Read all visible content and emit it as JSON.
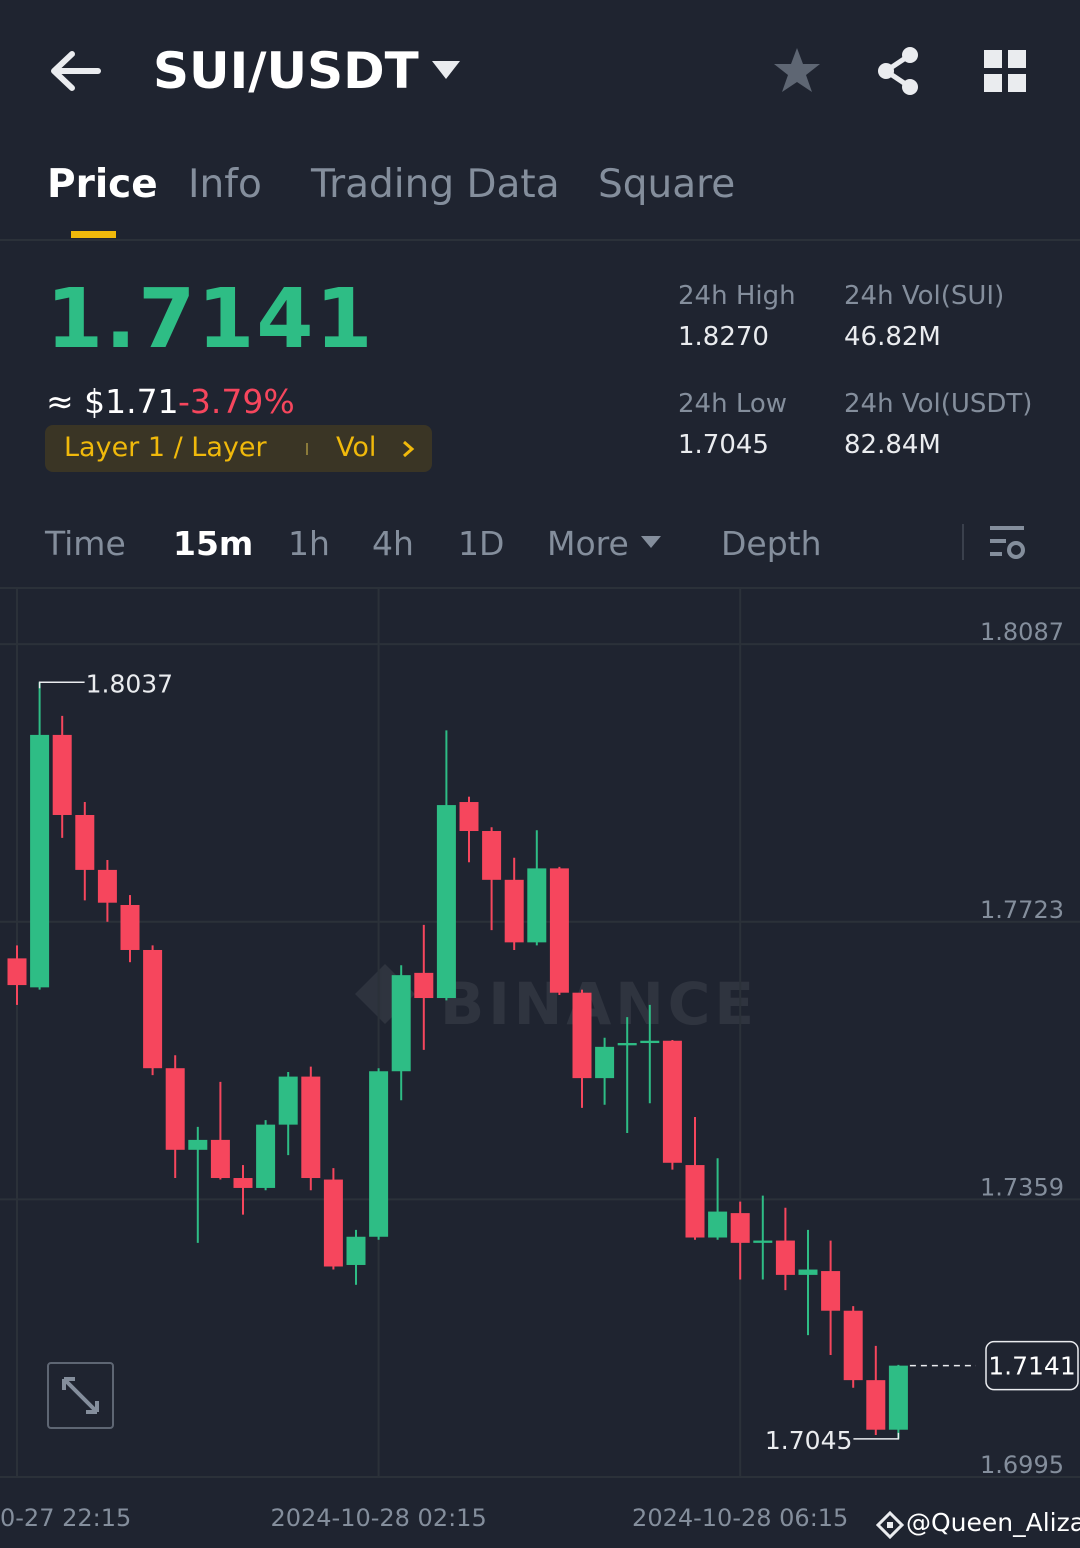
{
  "header": {
    "pair": "SUI/USDT"
  },
  "tabs": [
    "Price",
    "Info",
    "Trading Data",
    "Square"
  ],
  "ticker": {
    "price": "1.7141",
    "approx": "≈ $1.71",
    "change": "-3.79%",
    "tag": "Layer 1 / Layer",
    "tag_link": "Vol"
  },
  "stats": [
    {
      "label": "24h High",
      "value": "1.8270"
    },
    {
      "label": "24h Vol(SUI)",
      "value": "46.82M"
    },
    {
      "label": "24h Low",
      "value": "1.7045"
    },
    {
      "label": "24h Vol(USDT)",
      "value": "82.84M"
    }
  ],
  "intervals": [
    "Time",
    "15m",
    "1h",
    "4h",
    "1D",
    "More",
    "Depth"
  ],
  "chart_data": {
    "type": "candlestick",
    "watermark": "BINANCE",
    "categories": [
      "0-27 22:15",
      null,
      null,
      null,
      null,
      null,
      null,
      null,
      null,
      null,
      null,
      null,
      null,
      null,
      null,
      null,
      "2024-10-28 02:15",
      null,
      null,
      null,
      null,
      null,
      null,
      null,
      null,
      null,
      null,
      null,
      null,
      null,
      null,
      null,
      "2024-10-28 06:15",
      null,
      null,
      null,
      null,
      null,
      null,
      null
    ],
    "open": [
      1.7675,
      1.7637,
      1.7968,
      1.7863,
      1.7791,
      1.7745,
      1.7686,
      1.7531,
      1.7424,
      1.7437,
      1.7387,
      1.7374,
      1.7457,
      1.752,
      1.7385,
      1.7273,
      1.731,
      1.7527,
      1.7656,
      1.7623,
      1.788,
      1.7842,
      1.7778,
      1.7696,
      1.7793,
      1.763,
      1.7518,
      1.7561,
      1.7564,
      1.7567,
      1.7404,
      1.7309,
      1.7341,
      1.7302,
      1.7305,
      1.726,
      1.7265,
      1.7213,
      1.7122,
      1.7057
    ],
    "high": [
      1.7692,
      1.8037,
      1.7993,
      1.788,
      1.7804,
      1.7758,
      1.7692,
      1.7548,
      1.7454,
      1.7513,
      1.7404,
      1.7463,
      1.7526,
      1.7533,
      1.74,
      1.7319,
      1.7531,
      1.7666,
      1.7719,
      1.7974,
      1.7887,
      1.7847,
      1.7807,
      1.7843,
      1.7795,
      1.7634,
      1.7571,
      1.7598,
      1.7614,
      1.7568,
      1.7467,
      1.7413,
      1.7356,
      1.7364,
      1.7348,
      1.7319,
      1.7305,
      1.7219,
      1.7167,
      1.7142
    ],
    "low": [
      1.7614,
      1.7634,
      1.7833,
      1.7751,
      1.7723,
      1.767,
      1.7522,
      1.7387,
      1.7302,
      1.7385,
      1.7339,
      1.7371,
      1.7417,
      1.7371,
      1.7267,
      1.7247,
      1.7306,
      1.7489,
      1.7555,
      1.762,
      1.7801,
      1.7712,
      1.7686,
      1.7692,
      1.7627,
      1.7479,
      1.7483,
      1.7446,
      1.7485,
      1.7398,
      1.7306,
      1.7306,
      1.7254,
      1.7254,
      1.724,
      1.7181,
      1.7155,
      1.7112,
      1.705,
      1.7045
    ],
    "close": [
      1.764,
      1.7968,
      1.7863,
      1.7791,
      1.7748,
      1.7686,
      1.7531,
      1.7424,
      1.7437,
      1.7387,
      1.7374,
      1.7457,
      1.752,
      1.7387,
      1.7271,
      1.731,
      1.7527,
      1.7653,
      1.7623,
      1.7876,
      1.7842,
      1.7778,
      1.7696,
      1.7793,
      1.763,
      1.7518,
      1.7559,
      1.7564,
      1.7567,
      1.7407,
      1.7309,
      1.7343,
      1.7302,
      1.7305,
      1.726,
      1.7267,
      1.7213,
      1.7122,
      1.7057,
      1.7141
    ],
    "up_color": "#2ebd85",
    "down_color": "#f6465d",
    "ylim": [
      1.6995,
      1.8158
    ],
    "yticks": [
      1.6995,
      1.7359,
      1.7723,
      1.8087
    ],
    "grid": true
  },
  "footer": {
    "credit": "@Queen_Aliza"
  }
}
